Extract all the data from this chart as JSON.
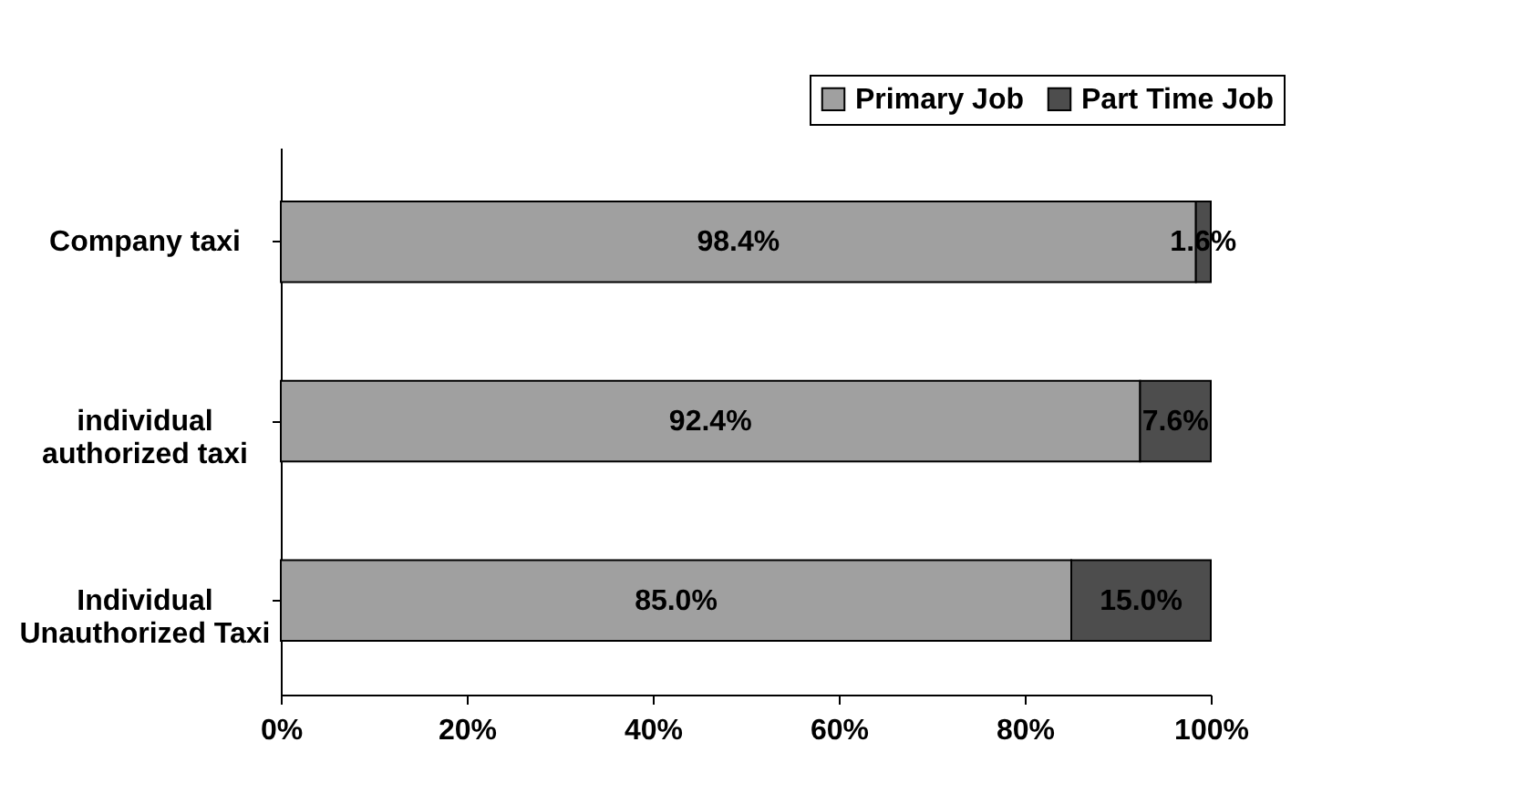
{
  "chart_data": {
    "type": "bar",
    "orientation": "horizontal",
    "stacked": true,
    "categories": [
      "Company taxi",
      "individual\nauthorized taxi",
      "Individual\nUnauthorized Taxi"
    ],
    "series": [
      {
        "name": "Primary Job",
        "color": "#a0a0a0",
        "values": [
          98.4,
          92.4,
          85.0
        ],
        "value_labels": [
          "98.4%",
          "92.4%",
          "85.0%"
        ]
      },
      {
        "name": "Part Time Job",
        "color": "#4d4d4d",
        "values": [
          1.6,
          7.6,
          15.0
        ],
        "value_labels": [
          "1.6%",
          "7.6%",
          "15.0%"
        ]
      }
    ],
    "xlim": [
      0,
      100
    ],
    "xticks": [
      {
        "value": 0,
        "label": "0%"
      },
      {
        "value": 20,
        "label": "20%"
      },
      {
        "value": 40,
        "label": "40%"
      },
      {
        "value": 60,
        "label": "60%"
      },
      {
        "value": 80,
        "label": "80%"
      },
      {
        "value": 100,
        "label": "100%"
      }
    ],
    "grid": false,
    "legend": "top right"
  }
}
